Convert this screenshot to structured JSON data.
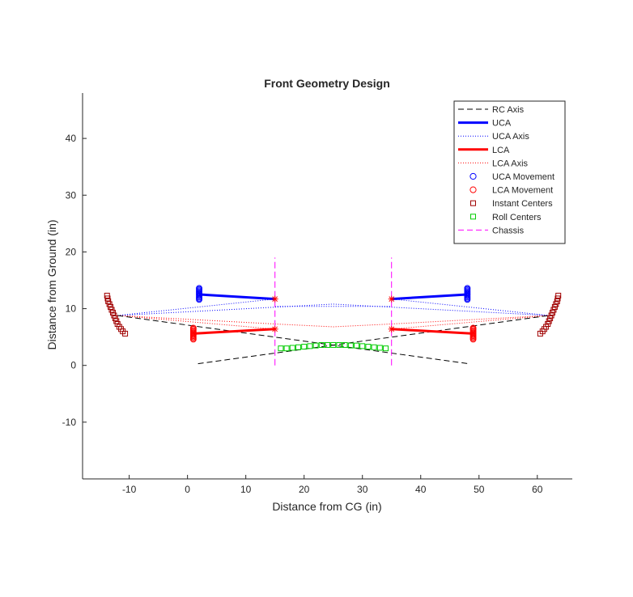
{
  "chart_data": {
    "type": "line",
    "title": "Front Geometry Design",
    "xlabel": "Distance from CG (in)",
    "ylabel": "Distance from Ground (in)",
    "xlim": [
      -18,
      66
    ],
    "ylim": [
      -20,
      48
    ],
    "xticks": [
      -10,
      0,
      10,
      20,
      30,
      40,
      50,
      60
    ],
    "yticks": [
      -10,
      0,
      10,
      20,
      30,
      40
    ],
    "xtick_labels": [
      "-10",
      "0",
      "10",
      "20",
      "30",
      "40",
      "50",
      "60"
    ],
    "ytick_labels": [
      "-10",
      "0",
      "10",
      "20",
      "30",
      "40"
    ],
    "grid": false,
    "legend_position": "top-right",
    "colors": {
      "rc_axis": "#000000",
      "uca": "#0000ff",
      "uca_axis": "#0000ff",
      "lca": "#ff0000",
      "lca_axis": "#ff0000",
      "uca_movement": "#0000ff",
      "lca_movement": "#ff0000",
      "instant_centers": "#a00000",
      "roll_centers": "#00cc00",
      "chassis": "#ff00ff"
    },
    "legend": [
      {
        "key": "rc_axis",
        "label": "RC Axis",
        "style": "dashed"
      },
      {
        "key": "uca",
        "label": "UCA",
        "style": "solid-thick"
      },
      {
        "key": "uca_axis",
        "label": "UCA Axis",
        "style": "dotted"
      },
      {
        "key": "lca",
        "label": "LCA",
        "style": "solid-thick"
      },
      {
        "key": "lca_axis",
        "label": "LCA Axis",
        "style": "dotted"
      },
      {
        "key": "uca_movement",
        "label": "UCA Movement",
        "style": "circle"
      },
      {
        "key": "lca_movement",
        "label": "LCA Movement",
        "style": "circle"
      },
      {
        "key": "instant_centers",
        "label": "Instant Centers",
        "style": "square"
      },
      {
        "key": "roll_centers",
        "label": "Roll Centers",
        "style": "square"
      },
      {
        "key": "chassis",
        "label": "Chassis",
        "style": "dashed"
      }
    ],
    "series": [
      {
        "key": "rc_axis",
        "segments": [
          [
            [
              -12,
              8.8
            ],
            [
              48.2,
              0.3
            ]
          ],
          [
            [
              1.8,
              0.3
            ],
            [
              62,
              8.8
            ]
          ]
        ]
      },
      {
        "key": "uca",
        "segments": [
          [
            [
              2,
              12.5
            ],
            [
              15,
              11.7
            ]
          ],
          [
            [
              35,
              11.7
            ],
            [
              48,
              12.5
            ]
          ]
        ]
      },
      {
        "key": "uca_axis",
        "segments": [
          [
            [
              -12,
              8.8
            ],
            [
              25,
              10.8
            ],
            [
              62,
              8.8
            ]
          ],
          [
            [
              -12,
              8.8
            ],
            [
              15,
              11.7
            ]
          ],
          [
            [
              35,
              11.7
            ],
            [
              62,
              8.8
            ]
          ],
          [
            [
              15,
              10.4
            ],
            [
              35,
              10.4
            ]
          ]
        ]
      },
      {
        "key": "lca",
        "segments": [
          [
            [
              1,
              5.6
            ],
            [
              15,
              6.4
            ]
          ],
          [
            [
              35,
              6.4
            ],
            [
              49,
              5.6
            ]
          ]
        ]
      },
      {
        "key": "lca_axis",
        "segments": [
          [
            [
              -12,
              8.8
            ],
            [
              15,
              6.4
            ]
          ],
          [
            [
              35,
              6.4
            ],
            [
              62,
              8.8
            ]
          ],
          [
            [
              15,
              7.3
            ],
            [
              25,
              6.8
            ],
            [
              35,
              7.3
            ]
          ],
          [
            [
              -12,
              8.8
            ],
            [
              15,
              7.3
            ]
          ],
          [
            [
              35,
              7.3
            ],
            [
              62,
              8.8
            ]
          ]
        ]
      },
      {
        "key": "chassis",
        "segments": [
          [
            [
              15,
              0
            ],
            [
              15,
              19
            ]
          ],
          [
            [
              35,
              0
            ],
            [
              35,
              19
            ]
          ]
        ]
      }
    ],
    "pivot_points": [
      [
        15,
        11.7
      ],
      [
        35,
        11.7
      ],
      [
        15,
        6.4
      ],
      [
        35,
        6.4
      ]
    ],
    "uca_movement": {
      "left": {
        "x": 2,
        "y": [
          11.6,
          11.8,
          12.0,
          12.2,
          12.4,
          12.6,
          12.8,
          13.0,
          13.2,
          13.4,
          13.6
        ]
      },
      "right": {
        "x": 48,
        "y": [
          11.6,
          11.8,
          12.0,
          12.2,
          12.4,
          12.6,
          12.8,
          13.0,
          13.2,
          13.4,
          13.6
        ]
      }
    },
    "lca_movement": {
      "left": {
        "x": 1,
        "y": [
          4.6,
          4.8,
          5.0,
          5.2,
          5.4,
          5.6,
          5.8,
          6.0,
          6.2,
          6.4,
          6.6
        ]
      },
      "right": {
        "x": 49,
        "y": [
          4.6,
          4.8,
          5.0,
          5.2,
          5.4,
          5.6,
          5.8,
          6.0,
          6.2,
          6.4,
          6.6
        ]
      }
    },
    "instant_centers": {
      "left": [
        [
          -13.8,
          12.3
        ],
        [
          -13.7,
          11.8
        ],
        [
          -13.6,
          11.3
        ],
        [
          -13.4,
          10.8
        ],
        [
          -13.2,
          10.3
        ],
        [
          -13.0,
          9.8
        ],
        [
          -12.8,
          9.3
        ],
        [
          -12.6,
          8.8
        ],
        [
          -12.4,
          8.3
        ],
        [
          -12.2,
          7.8
        ],
        [
          -12.0,
          7.3
        ],
        [
          -11.7,
          6.8
        ],
        [
          -11.4,
          6.4
        ],
        [
          -11.1,
          6.0
        ],
        [
          -10.7,
          5.6
        ]
      ],
      "right": [
        [
          63.6,
          12.3
        ],
        [
          63.5,
          11.8
        ],
        [
          63.4,
          11.3
        ],
        [
          63.2,
          10.8
        ],
        [
          63.0,
          10.3
        ],
        [
          62.8,
          9.8
        ],
        [
          62.6,
          9.3
        ],
        [
          62.4,
          8.8
        ],
        [
          62.2,
          8.3
        ],
        [
          62.0,
          7.8
        ],
        [
          61.8,
          7.3
        ],
        [
          61.5,
          6.8
        ],
        [
          61.2,
          6.4
        ],
        [
          60.9,
          6.0
        ],
        [
          60.5,
          5.6
        ]
      ]
    },
    "roll_centers": [
      [
        16,
        3.0
      ],
      [
        17,
        3.0
      ],
      [
        18,
        3.1
      ],
      [
        19,
        3.2
      ],
      [
        20,
        3.3
      ],
      [
        21,
        3.4
      ],
      [
        22,
        3.5
      ],
      [
        23,
        3.6
      ],
      [
        24,
        3.6
      ],
      [
        25,
        3.6
      ],
      [
        26,
        3.6
      ],
      [
        27,
        3.6
      ],
      [
        28,
        3.5
      ],
      [
        29,
        3.5
      ],
      [
        30,
        3.4
      ],
      [
        31,
        3.3
      ],
      [
        32,
        3.2
      ],
      [
        33,
        3.1
      ],
      [
        34,
        3.0
      ]
    ]
  }
}
